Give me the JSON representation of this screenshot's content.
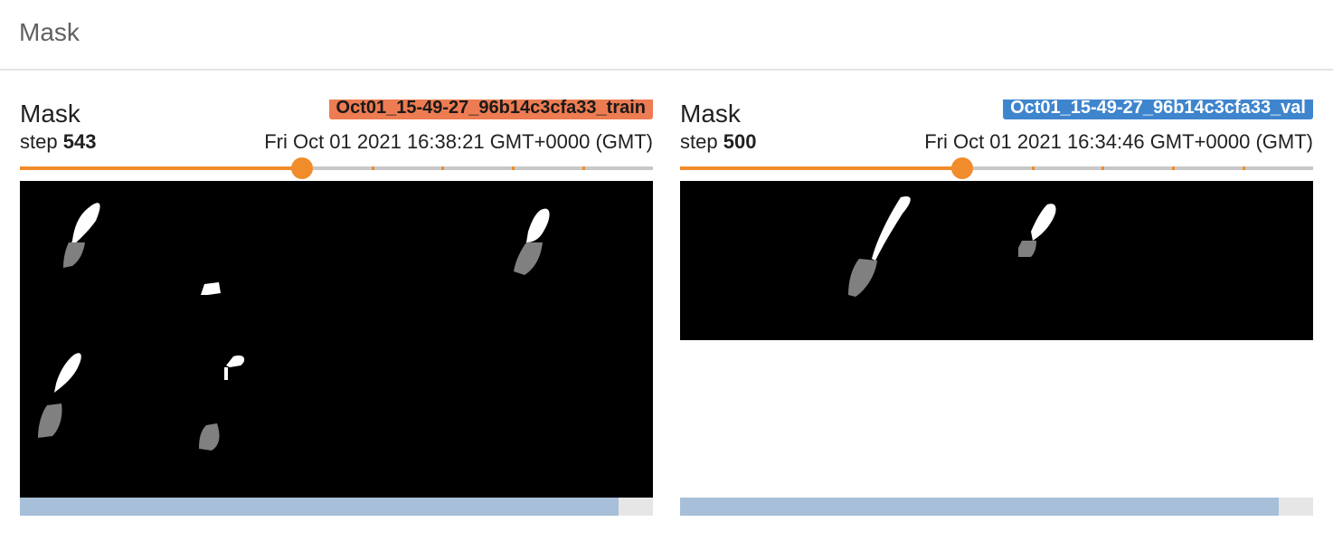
{
  "header": {
    "title": "Mask"
  },
  "cards": [
    {
      "title": "Mask",
      "run": "Oct01_15-49-27_96b14c3cfa33_train",
      "run_color": "#ee7c52",
      "step_label": "step",
      "step": "543",
      "timestamp": "Fri Oct 01 2021 16:38:21 GMT+0000 (GMT)",
      "slider": {
        "value": 0.445,
        "ticks": [
          0.555,
          0.666,
          0.777,
          0.888
        ]
      },
      "scroll": {
        "visible_fraction": 0.945
      }
    },
    {
      "title": "Mask",
      "run": "Oct01_15-49-27_96b14c3cfa33_val",
      "run_color": "#3f85cd",
      "step_label": "step",
      "step": "500",
      "timestamp": "Fri Oct 01 2021 16:34:46 GMT+0000 (GMT)",
      "slider": {
        "value": 0.445,
        "ticks": [
          0.555,
          0.666,
          0.777,
          0.888
        ]
      },
      "scroll": {
        "visible_fraction": 0.945
      }
    }
  ],
  "colors": {
    "accent": "#f08c2c",
    "scroll_thumb": "#a7bfd8",
    "mask_foreground": "#ffffff",
    "mask_gray": "#808080"
  }
}
